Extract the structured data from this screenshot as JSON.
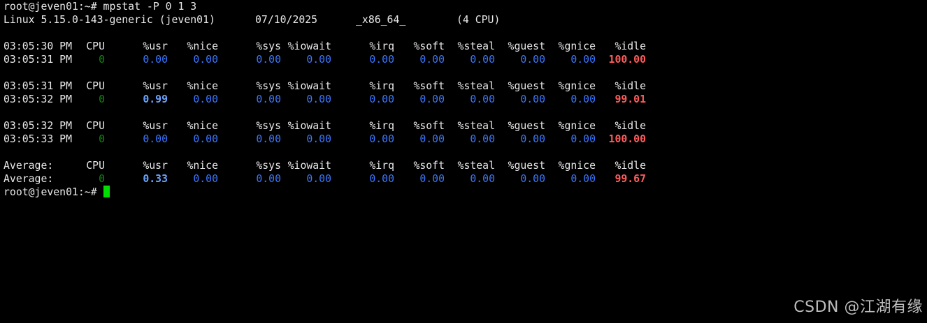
{
  "terminal": {
    "prompt": "root@jeven01:~# ",
    "command": "mpstat -P 0 1 3",
    "sysinfo": {
      "kernel": "Linux 5.15.0-143-generic (jeven01)",
      "date": "07/10/2025",
      "arch": "_x86_64_",
      "cpus": "(4 CPU)"
    },
    "columns": [
      "CPU",
      "%usr",
      "%nice",
      "%sys",
      "%iowait",
      "%irq",
      "%soft",
      "%steal",
      "%guest",
      "%gnice",
      "%idle"
    ],
    "blocks": [
      {
        "header_time": "03:05:30 PM",
        "row": {
          "time": "03:05:31 PM",
          "cpu": "0",
          "usr": "0.00",
          "nice": "0.00",
          "sys": "0.00",
          "iowait": "0.00",
          "irq": "0.00",
          "soft": "0.00",
          "steal": "0.00",
          "guest": "0.00",
          "gnice": "0.00",
          "idle": "100.00"
        }
      },
      {
        "header_time": "03:05:31 PM",
        "row": {
          "time": "03:05:32 PM",
          "cpu": "0",
          "usr": "0.99",
          "nice": "0.00",
          "sys": "0.00",
          "iowait": "0.00",
          "irq": "0.00",
          "soft": "0.00",
          "steal": "0.00",
          "guest": "0.00",
          "gnice": "0.00",
          "idle": "99.01"
        }
      },
      {
        "header_time": "03:05:32 PM",
        "row": {
          "time": "03:05:33 PM",
          "cpu": "0",
          "usr": "0.00",
          "nice": "0.00",
          "sys": "0.00",
          "iowait": "0.00",
          "irq": "0.00",
          "soft": "0.00",
          "steal": "0.00",
          "guest": "0.00",
          "gnice": "0.00",
          "idle": "100.00"
        }
      },
      {
        "header_time": "Average:",
        "row": {
          "time": "Average:",
          "cpu": "0",
          "usr": "0.33",
          "nice": "0.00",
          "sys": "0.00",
          "iowait": "0.00",
          "irq": "0.00",
          "soft": "0.00",
          "steal": "0.00",
          "guest": "0.00",
          "gnice": "0.00",
          "idle": "99.67"
        }
      }
    ],
    "final_prompt": "root@jeven01:~# "
  },
  "watermark": "CSDN @江湖有缘",
  "colors": {
    "background": "#000000",
    "text": "#e8e8e8",
    "cpu_value": "#0a8a0a",
    "metric_value": "#3b78ff",
    "idle_value": "#ff5c5c",
    "cursor": "#00e000"
  }
}
